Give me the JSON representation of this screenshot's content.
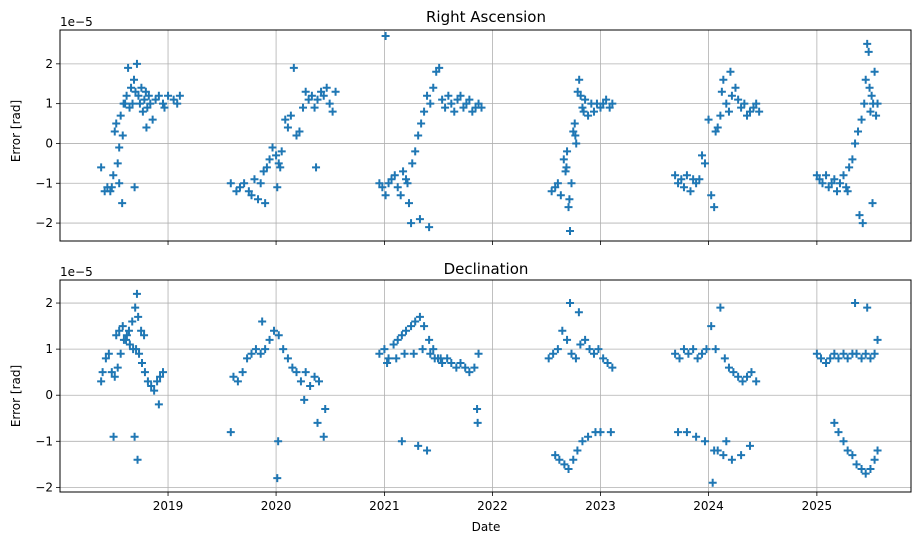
{
  "chart_data": [
    {
      "type": "scatter",
      "title": "Right Ascension",
      "xlabel": "",
      "ylabel": "Error [rad]",
      "offset_text": "1e−5",
      "x_type": "date",
      "xlim": [
        "2018-01-01",
        "2025-11-15"
      ],
      "ylim": [
        -2.45,
        2.85
      ],
      "x_ticks": [
        "2019-01-01",
        "2020-01-01",
        "2021-01-01",
        "2022-01-01",
        "2023-01-01",
        "2024-01-01",
        "2025-01-01"
      ],
      "x_tick_labels": [
        "",
        "",
        "",
        "",
        "",
        "",
        ""
      ],
      "y_ticks": [
        -2,
        -1,
        0,
        1,
        2
      ],
      "y_tick_labels": [
        "−2",
        "−1",
        "0",
        "1",
        "2"
      ],
      "grid": true,
      "marker": "+",
      "color": "#1f77b4",
      "series": [
        {
          "x": [
            "2018-05-20",
            "2018-06-01",
            "2018-06-10",
            "2018-06-20",
            "2018-06-25",
            "2018-06-30",
            "2018-07-05",
            "2018-07-10",
            "2018-07-15",
            "2018-07-20",
            "2018-07-25",
            "2018-07-30",
            "2018-08-04",
            "2018-08-09",
            "2018-08-14",
            "2018-08-19",
            "2018-08-24",
            "2018-08-29",
            "2018-09-03",
            "2018-09-08",
            "2018-09-13",
            "2018-09-18",
            "2018-09-23",
            "2018-09-28",
            "2018-10-03",
            "2018-10-08",
            "2018-10-13",
            "2018-10-18",
            "2018-10-23",
            "2018-10-28",
            "2018-11-02",
            "2018-11-10",
            "2018-11-20",
            "2018-12-01",
            "2018-12-15",
            "2019-01-01",
            "2019-01-20",
            "2019-02-01",
            "2019-02-10",
            "2018-07-20",
            "2018-08-01",
            "2018-09-10",
            "2018-10-20",
            "2018-12-20",
            "2019-08-01",
            "2019-08-20",
            "2019-09-01",
            "2019-09-15",
            "2019-10-01",
            "2019-10-10",
            "2019-10-20",
            "2019-11-01",
            "2019-11-10",
            "2019-11-20",
            "2019-12-01",
            "2019-12-10",
            "2019-12-20",
            "2020-01-01",
            "2020-01-10",
            "2020-01-20",
            "2020-02-01",
            "2020-02-10",
            "2020-02-20",
            "2020-03-01",
            "2020-03-10",
            "2020-03-20",
            "2020-04-01",
            "2020-04-10",
            "2020-04-20",
            "2020-05-01",
            "2020-05-10",
            "2020-05-20",
            "2020-06-01",
            "2020-06-10",
            "2020-06-20",
            "2020-06-30",
            "2020-07-10",
            "2020-07-20",
            "2020-01-05",
            "2020-01-15",
            "2019-11-25",
            "2020-05-15",
            "2020-12-15",
            "2020-12-25",
            "2021-01-05",
            "2021-01-15",
            "2021-01-25",
            "2021-02-05",
            "2021-02-15",
            "2021-02-25",
            "2021-03-05",
            "2021-03-15",
            "2021-03-25",
            "2021-04-05",
            "2021-04-15",
            "2021-04-25",
            "2021-05-05",
            "2021-05-15",
            "2021-05-25",
            "2021-06-05",
            "2021-06-15",
            "2021-06-25",
            "2021-07-05",
            "2021-07-15",
            "2021-07-25",
            "2021-08-05",
            "2021-08-15",
            "2021-08-25",
            "2021-09-05",
            "2021-09-15",
            "2021-09-25",
            "2021-10-05",
            "2021-10-15",
            "2021-10-25",
            "2021-11-05",
            "2021-11-15",
            "2021-11-25",
            "2021-01-05",
            "2021-04-01",
            "2021-05-01",
            "2021-06-01",
            "2021-03-20",
            "2022-07-20",
            "2022-08-01",
            "2022-08-10",
            "2022-08-20",
            "2022-08-30",
            "2022-09-05",
            "2022-09-10",
            "2022-09-15",
            "2022-09-20",
            "2022-09-25",
            "2022-10-01",
            "2022-10-06",
            "2022-10-11",
            "2022-10-16",
            "2022-10-21",
            "2022-10-26",
            "2022-11-01",
            "2022-11-10",
            "2022-11-20",
            "2022-12-01",
            "2022-12-10",
            "2022-12-20",
            "2023-01-01",
            "2023-01-10",
            "2023-01-20",
            "2023-02-01",
            "2023-02-10",
            "2022-09-08",
            "2022-09-18",
            "2022-10-08",
            "2022-11-05",
            "2023-09-10",
            "2023-09-20",
            "2023-10-01",
            "2023-10-10",
            "2023-10-20",
            "2023-11-01",
            "2023-11-10",
            "2023-11-20",
            "2023-12-01",
            "2023-12-10",
            "2023-12-20",
            "2024-01-01",
            "2024-01-10",
            "2024-01-20",
            "2024-02-01",
            "2024-02-10",
            "2024-02-20",
            "2024-03-01",
            "2024-03-10",
            "2024-03-20",
            "2024-04-01",
            "2024-04-10",
            "2024-04-20",
            "2024-05-01",
            "2024-05-10",
            "2024-05-20",
            "2024-06-01",
            "2024-06-10",
            "2024-06-20",
            "2024-01-25",
            "2024-02-15",
            "2024-03-15",
            "2025-01-01",
            "2025-01-10",
            "2025-01-20",
            "2025-02-01",
            "2025-02-10",
            "2025-02-20",
            "2025-03-01",
            "2025-03-10",
            "2025-03-20",
            "2025-04-01",
            "2025-04-10",
            "2025-04-20",
            "2025-05-01",
            "2025-05-10",
            "2025-05-20",
            "2025-06-01",
            "2025-06-10",
            "2025-06-15",
            "2025-06-20",
            "2025-06-25",
            "2025-07-01",
            "2025-07-05",
            "2025-07-10",
            "2025-07-15",
            "2025-07-20",
            "2025-07-25",
            "2025-05-25",
            "2025-06-05",
            "2025-07-08",
            "2025-04-15",
            "2025-06-28"
          ],
          "y": [
            -0.6,
            -1.2,
            -1.1,
            -1.2,
            -1.1,
            -0.8,
            0.3,
            0.5,
            -0.5,
            -1.0,
            0.7,
            -1.5,
            1.0,
            1.0,
            1.2,
            1.9,
            0.9,
            1.4,
            1.0,
            1.6,
            1.3,
            2.0,
            1.2,
            1.0,
            1.4,
            0.8,
            1.1,
            1.3,
            0.9,
            1.2,
            1.0,
            0.6,
            1.1,
            1.2,
            1.0,
            1.2,
            1.1,
            1.0,
            1.2,
            -0.1,
            0.2,
            -1.1,
            0.4,
            0.9,
            -1.0,
            -1.2,
            -1.1,
            -1.0,
            -1.2,
            -1.3,
            -0.9,
            -1.4,
            -1.0,
            -0.7,
            -0.6,
            -0.4,
            -0.1,
            -0.3,
            -0.5,
            -0.2,
            0.6,
            0.4,
            0.7,
            1.9,
            0.2,
            0.3,
            0.9,
            1.3,
            1.1,
            1.2,
            0.9,
            1.1,
            1.3,
            1.2,
            1.4,
            1.0,
            0.8,
            1.3,
            -1.1,
            -0.6,
            -1.5,
            -0.6,
            -1.0,
            -1.1,
            2.7,
            -1.0,
            -0.9,
            -0.8,
            -1.1,
            -1.3,
            -0.7,
            -0.9,
            -1.5,
            -0.5,
            -0.2,
            0.2,
            0.5,
            0.8,
            1.2,
            1.0,
            1.4,
            1.8,
            1.9,
            1.1,
            0.9,
            1.2,
            1.0,
            0.8,
            1.1,
            1.2,
            0.9,
            1.0,
            1.1,
            0.8,
            0.9,
            1.0,
            0.9,
            -1.3,
            -2.0,
            -1.9,
            -2.1,
            -1.0,
            -1.2,
            -1.1,
            -1.0,
            -1.3,
            -0.4,
            -0.7,
            -0.2,
            -1.6,
            -2.2,
            -1.0,
            0.3,
            0.5,
            0.0,
            1.3,
            1.6,
            1.2,
            0.9,
            1.1,
            0.7,
            1.0,
            0.8,
            1.0,
            0.9,
            1.0,
            1.1,
            0.9,
            1.0,
            -0.6,
            -1.4,
            0.2,
            0.8,
            -0.8,
            -1.0,
            -0.9,
            -1.1,
            -0.8,
            -1.2,
            -0.9,
            -1.0,
            -0.9,
            -0.3,
            -0.5,
            0.6,
            -1.3,
            -1.6,
            0.4,
            0.7,
            1.6,
            1.0,
            0.8,
            1.2,
            1.4,
            1.1,
            0.9,
            1.0,
            0.7,
            0.8,
            0.9,
            1.0,
            0.8,
            0.3,
            1.3,
            1.8,
            -0.8,
            -0.9,
            -1.0,
            -0.8,
            -1.1,
            -1.0,
            -0.9,
            -1.2,
            -1.0,
            -0.8,
            -1.1,
            -0.6,
            -0.4,
            0.0,
            0.3,
            0.6,
            1.0,
            1.6,
            2.5,
            2.3,
            0.8,
            1.2,
            1.0,
            1.8,
            0.7,
            1.0,
            -1.8,
            -2.0,
            -1.5,
            -1.2,
            1.4
          ]
        }
      ]
    },
    {
      "type": "scatter",
      "title": "Declination",
      "xlabel": "Date",
      "ylabel": "Error [rad]",
      "offset_text": "1e−5",
      "x_type": "date",
      "xlim": [
        "2018-01-01",
        "2025-11-15"
      ],
      "ylim": [
        -2.1,
        2.5
      ],
      "x_ticks": [
        "2019-01-01",
        "2020-01-01",
        "2021-01-01",
        "2022-01-01",
        "2023-01-01",
        "2024-01-01",
        "2025-01-01"
      ],
      "x_tick_labels": [
        "2019",
        "2020",
        "2021",
        "2022",
        "2023",
        "2024",
        "2025"
      ],
      "y_ticks": [
        -2,
        -1,
        0,
        1,
        2
      ],
      "y_tick_labels": [
        "−2",
        "−1",
        "0",
        "1",
        "2"
      ],
      "grid": true,
      "marker": "+",
      "color": "#1f77b4",
      "series": [
        {
          "x": [
            "2018-05-20",
            "2018-05-25",
            "2018-06-05",
            "2018-06-15",
            "2018-06-25",
            "2018-07-05",
            "2018-07-15",
            "2018-07-25",
            "2018-08-05",
            "2018-08-15",
            "2018-08-25",
            "2018-09-05",
            "2018-09-15",
            "2018-09-25",
            "2018-10-05",
            "2018-10-15",
            "2018-10-25",
            "2018-11-05",
            "2018-11-15",
            "2018-11-25",
            "2018-12-05",
            "2018-12-15",
            "2018-07-10",
            "2018-07-20",
            "2018-08-01",
            "2018-08-12",
            "2018-08-22",
            "2018-09-02",
            "2018-09-12",
            "2018-09-22",
            "2018-10-02",
            "2018-10-12",
            "2018-09-10",
            "2018-09-20",
            "2018-07-01",
            "2018-09-18",
            "2018-12-01",
            "2019-08-10",
            "2019-08-25",
            "2019-09-10",
            "2019-09-25",
            "2019-10-10",
            "2019-10-25",
            "2019-11-10",
            "2019-11-25",
            "2019-12-10",
            "2019-12-25",
            "2020-01-10",
            "2020-01-25",
            "2020-02-10",
            "2020-02-25",
            "2020-03-10",
            "2020-03-25",
            "2020-04-10",
            "2020-04-25",
            "2020-05-10",
            "2020-05-25",
            "2019-11-15",
            "2020-01-05",
            "2020-01-08",
            "2020-04-05",
            "2020-05-20",
            "2020-06-10",
            "2020-06-15",
            "2019-08-01",
            "2020-12-15",
            "2021-01-01",
            "2021-01-15",
            "2021-02-01",
            "2021-02-15",
            "2021-03-01",
            "2021-03-15",
            "2021-04-01",
            "2021-04-15",
            "2021-05-01",
            "2021-05-15",
            "2021-06-01",
            "2021-06-15",
            "2021-07-01",
            "2021-07-15",
            "2021-08-01",
            "2021-08-15",
            "2021-09-01",
            "2021-09-15",
            "2021-10-01",
            "2021-10-15",
            "2021-11-01",
            "2021-11-15",
            "2021-01-10",
            "2021-02-10",
            "2021-03-10",
            "2021-04-10",
            "2021-05-10",
            "2021-06-05",
            "2021-06-20",
            "2021-07-10",
            "2021-03-01",
            "2021-04-25",
            "2021-05-25",
            "2021-11-10",
            "2021-11-12",
            "2022-07-10",
            "2022-07-25",
            "2022-08-10",
            "2022-08-25",
            "2022-09-10",
            "2022-09-25",
            "2022-10-10",
            "2022-10-25",
            "2022-11-10",
            "2022-11-25",
            "2022-12-10",
            "2022-12-25",
            "2023-01-10",
            "2023-01-25",
            "2023-02-10",
            "2022-08-01",
            "2022-08-15",
            "2022-09-01",
            "2022-09-15",
            "2022-10-01",
            "2022-10-15",
            "2022-11-01",
            "2022-11-20",
            "2022-12-15",
            "2023-01-01",
            "2023-02-05",
            "2022-09-20",
            "2022-10-20",
            "2023-09-10",
            "2023-09-25",
            "2023-10-10",
            "2023-10-25",
            "2023-11-10",
            "2023-11-25",
            "2023-12-10",
            "2023-12-25",
            "2024-01-10",
            "2024-01-25",
            "2024-02-10",
            "2024-02-25",
            "2024-03-10",
            "2024-03-25",
            "2024-04-10",
            "2024-04-25",
            "2024-05-10",
            "2024-05-25",
            "2024-06-10",
            "2023-09-20",
            "2023-10-20",
            "2023-11-20",
            "2023-12-20",
            "2024-01-20",
            "2024-02-20",
            "2024-03-20",
            "2024-04-20",
            "2024-05-20",
            "2024-01-15",
            "2024-02-01",
            "2024-03-01",
            "2025-01-01",
            "2025-01-15",
            "2025-02-01",
            "2025-02-15",
            "2025-03-01",
            "2025-03-15",
            "2025-04-01",
            "2025-04-15",
            "2025-05-01",
            "2025-05-15",
            "2025-06-01",
            "2025-06-15",
            "2025-07-01",
            "2025-07-15",
            "2025-07-25",
            "2025-03-01",
            "2025-03-15",
            "2025-04-01",
            "2025-04-15",
            "2025-05-01",
            "2025-05-15",
            "2025-06-01",
            "2025-06-15",
            "2025-07-01",
            "2025-07-15",
            "2025-07-25",
            "2025-05-10",
            "2025-06-20"
          ],
          "y": [
            0.3,
            0.5,
            0.8,
            0.9,
            0.5,
            0.4,
            0.6,
            0.9,
            1.2,
            1.3,
            1.1,
            1.0,
            1.0,
            0.9,
            0.7,
            0.5,
            0.3,
            0.2,
            0.1,
            0.3,
            0.4,
            0.5,
            1.3,
            1.4,
            1.5,
            1.2,
            1.4,
            1.6,
            1.9,
            1.7,
            1.4,
            1.3,
            -0.9,
            -1.4,
            -0.9,
            2.2,
            -0.2,
            0.4,
            0.3,
            0.5,
            0.8,
            0.9,
            1.0,
            0.9,
            1.0,
            1.2,
            1.4,
            1.3,
            1.0,
            0.8,
            0.6,
            0.5,
            0.3,
            0.5,
            0.2,
            0.4,
            0.3,
            1.6,
            -1.8,
            -1.0,
            -0.1,
            -0.6,
            -0.9,
            -0.3,
            -0.8,
            0.9,
            1.0,
            0.8,
            1.1,
            1.2,
            1.3,
            1.4,
            1.5,
            1.6,
            1.7,
            1.5,
            1.2,
            1.0,
            0.8,
            0.7,
            0.8,
            0.7,
            0.6,
            0.7,
            0.6,
            0.5,
            0.6,
            0.9,
            0.7,
            0.8,
            0.9,
            0.9,
            1.0,
            0.9,
            0.8,
            0.8,
            -1.0,
            -1.1,
            -1.2,
            -0.3,
            -0.6,
            0.8,
            0.9,
            1.0,
            1.4,
            1.2,
            0.9,
            0.8,
            1.1,
            1.2,
            1.0,
            0.9,
            1.0,
            0.8,
            0.7,
            0.6,
            -1.3,
            -1.4,
            -1.5,
            -1.6,
            -1.4,
            -1.2,
            -1.0,
            -0.9,
            -0.8,
            -0.8,
            -0.8,
            2.0,
            1.8,
            0.9,
            0.8,
            1.0,
            0.9,
            1.0,
            0.8,
            0.9,
            1.0,
            1.5,
            1.0,
            1.9,
            0.8,
            0.6,
            0.5,
            0.4,
            0.3,
            0.4,
            0.5,
            0.3,
            -0.8,
            -0.8,
            -0.9,
            -1.0,
            -1.2,
            -1.3,
            -1.4,
            -1.3,
            -1.1,
            -1.9,
            -1.2,
            -1.0,
            0.9,
            0.8,
            0.7,
            0.8,
            0.9,
            0.8,
            0.9,
            0.8,
            0.9,
            0.9,
            0.8,
            0.9,
            0.8,
            0.9,
            1.2,
            -0.6,
            -0.8,
            -1.0,
            -1.2,
            -1.3,
            -1.5,
            -1.6,
            -1.7,
            -1.6,
            -1.4,
            -1.2,
            2.0,
            1.9
          ]
        }
      ]
    }
  ]
}
